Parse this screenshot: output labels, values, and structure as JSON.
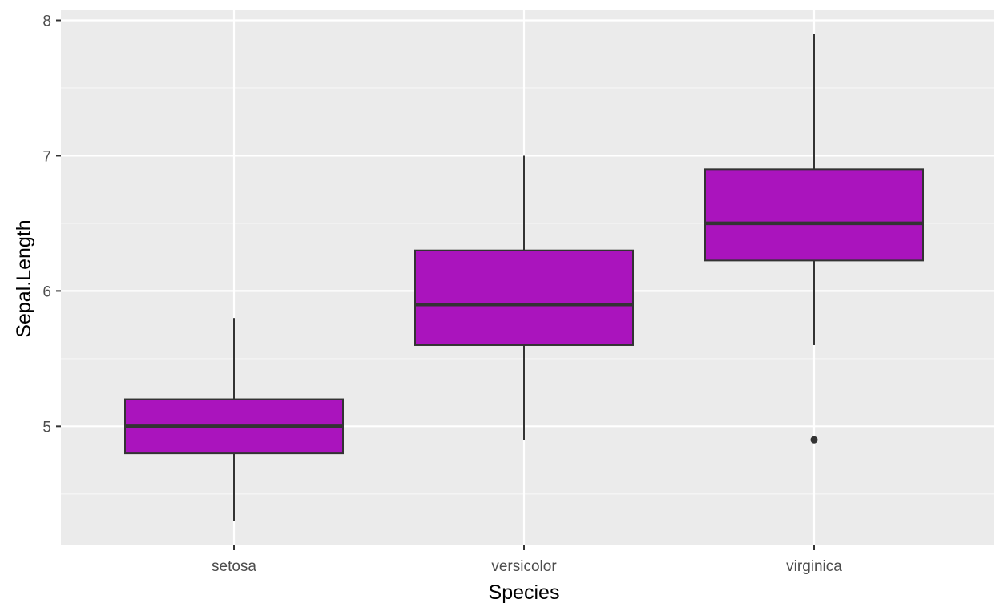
{
  "chart_data": {
    "type": "boxplot",
    "title": "",
    "xlabel": "Species",
    "ylabel": "Sepal.Length",
    "ylim": [
      4.12,
      8.08
    ],
    "y_major_ticks": [
      5,
      6,
      7,
      8
    ],
    "y_minor_ticks": [
      4.5,
      5.5,
      6.5,
      7.5
    ],
    "categories": [
      "setosa",
      "versicolor",
      "virginica"
    ],
    "boxes": [
      {
        "category": "setosa",
        "whisker_low": 4.3,
        "q1": 4.8,
        "median": 5.0,
        "q3": 5.2,
        "whisker_high": 5.8,
        "outliers": []
      },
      {
        "category": "versicolor",
        "whisker_low": 4.9,
        "q1": 5.6,
        "median": 5.9,
        "q3": 6.3,
        "whisker_high": 7.0,
        "outliers": []
      },
      {
        "category": "virginica",
        "whisker_low": 5.6,
        "q1": 6.225,
        "median": 6.5,
        "q3": 6.9,
        "whisker_high": 7.9,
        "outliers": [
          4.9
        ]
      }
    ],
    "grid": true,
    "colors": {
      "panel_background": "#ebebeb",
      "grid_major": "#ffffff",
      "grid_minor": "#f7f7f7",
      "box_fill": "#aa14bd",
      "box_line": "#333333",
      "tick_color": "#333333"
    }
  }
}
